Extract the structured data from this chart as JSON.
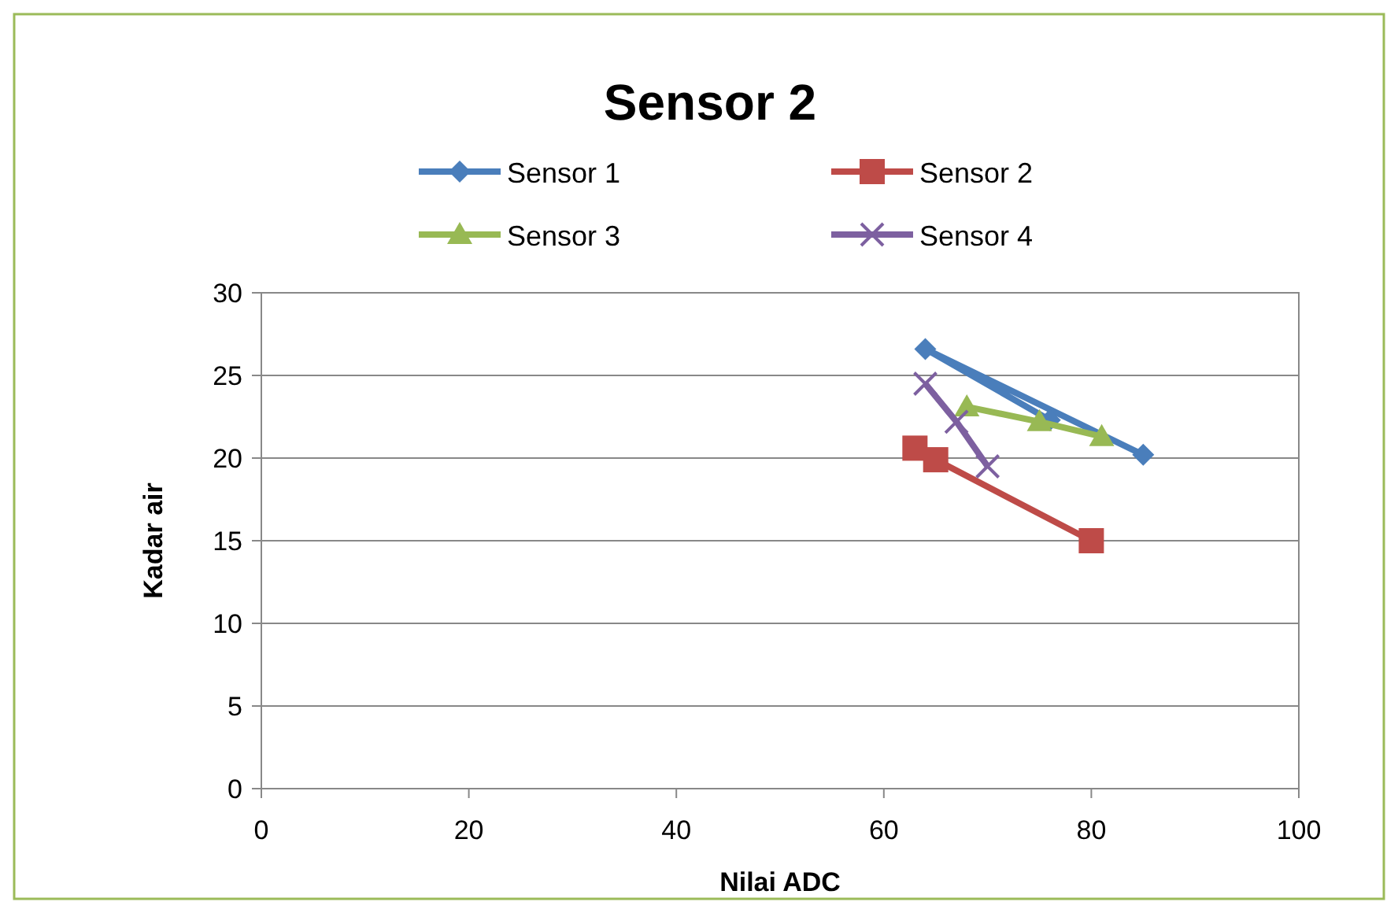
{
  "chart_data": {
    "type": "line",
    "title": "Sensor 2",
    "xlabel": "Nilai ADC",
    "ylabel": "Kadar air",
    "xlim": [
      0,
      100
    ],
    "xticks": [
      0,
      20,
      40,
      60,
      80,
      100
    ],
    "ylim": [
      0,
      30
    ],
    "yticks": [
      0,
      5,
      10,
      15,
      20,
      25,
      30
    ],
    "grid": "y",
    "legend": "top",
    "series": [
      {
        "name": "Sensor 1",
        "color": "#4a7ebb",
        "marker": "diamond",
        "x": [
          76,
          64,
          85
        ],
        "values": [
          22.3,
          26.6,
          20.2
        ]
      },
      {
        "name": "Sensor 2",
        "color": "#be4b48",
        "marker": "square",
        "x": [
          63,
          65,
          80
        ],
        "values": [
          20.6,
          19.9,
          15
        ]
      },
      {
        "name": "Sensor 3",
        "color": "#98b954",
        "marker": "triangle",
        "x": [
          68,
          75,
          81
        ],
        "values": [
          23.1,
          22.2,
          21.3
        ]
      },
      {
        "name": "Sensor 4",
        "color": "#7d60a0",
        "marker": "cross",
        "x": [
          64,
          67,
          70
        ],
        "values": [
          24.5,
          22.2,
          19.5
        ]
      }
    ]
  }
}
